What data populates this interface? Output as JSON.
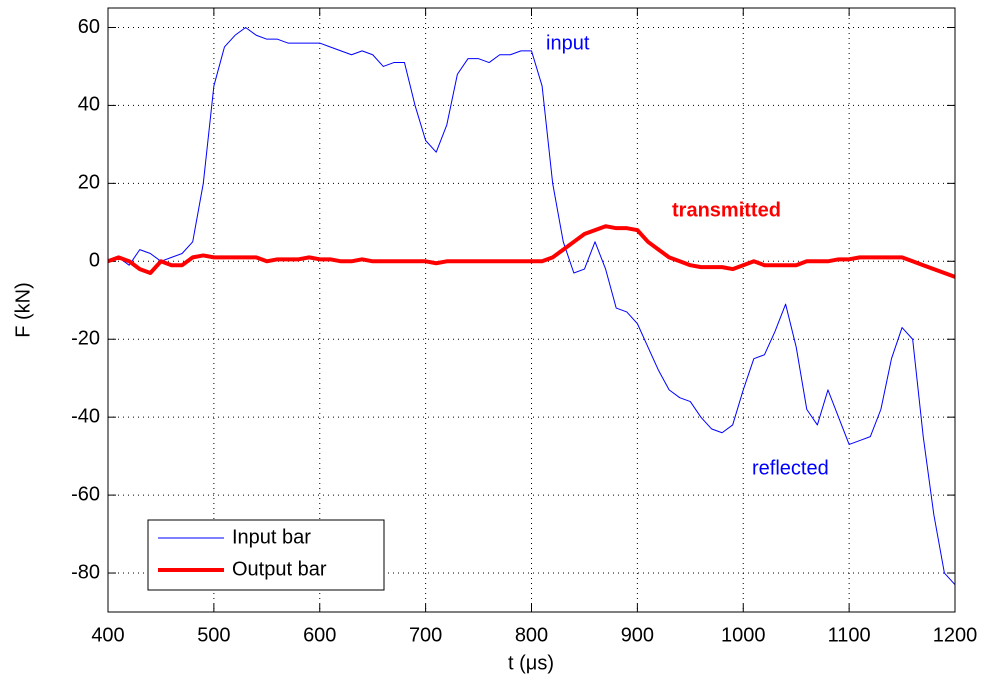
{
  "chart_data": {
    "type": "line",
    "xlabel": "t (μs)",
    "ylabel": "F (kN)",
    "x": [
      400,
      410,
      420,
      430,
      440,
      450,
      460,
      470,
      480,
      490,
      500,
      510,
      520,
      530,
      540,
      550,
      560,
      570,
      580,
      590,
      600,
      610,
      620,
      630,
      640,
      650,
      660,
      670,
      680,
      690,
      700,
      710,
      720,
      730,
      740,
      750,
      760,
      770,
      780,
      790,
      800,
      810,
      820,
      830,
      840,
      850,
      860,
      870,
      880,
      890,
      900,
      910,
      920,
      930,
      940,
      950,
      960,
      970,
      980,
      990,
      1000,
      1010,
      1020,
      1030,
      1040,
      1050,
      1060,
      1070,
      1080,
      1090,
      1100,
      1110,
      1120,
      1130,
      1140,
      1150,
      1160,
      1170,
      1180,
      1190,
      1200
    ],
    "series": [
      {
        "name": "Input bar",
        "color": "#0000ff",
        "width": 1,
        "values": [
          0,
          1,
          -1,
          3,
          2,
          0,
          1,
          2,
          5,
          20,
          45,
          55,
          58,
          60,
          58,
          57,
          57,
          56,
          56,
          56,
          56,
          55,
          54,
          53,
          54,
          53,
          50,
          51,
          51,
          40,
          31,
          28,
          35,
          48,
          52,
          52,
          51,
          53,
          53,
          54,
          54,
          45,
          20,
          5,
          -3,
          -2,
          5,
          -2,
          -12,
          -13,
          -16,
          -22,
          -28,
          -33,
          -35,
          -36,
          -40,
          -43,
          -44,
          -42,
          -33,
          -25,
          -24,
          -18,
          -11,
          -22,
          -38,
          -42,
          -33,
          -40,
          -47,
          -46,
          -45,
          -38,
          -25,
          -17,
          -20,
          -45,
          -65,
          -80,
          -83
        ]
      },
      {
        "name": "Output bar",
        "color": "#ff0000",
        "width": 4,
        "values": [
          0,
          1,
          0,
          -2,
          -3,
          0,
          -1,
          -1,
          1,
          1.5,
          1,
          1,
          1,
          1,
          1,
          0,
          0.5,
          0.5,
          0.5,
          1,
          0.5,
          0.5,
          0,
          0,
          0.5,
          0,
          0,
          0,
          0,
          0,
          0,
          -0.5,
          0,
          0,
          0,
          0,
          0,
          0,
          0,
          0,
          0,
          0,
          1,
          3,
          5,
          7,
          8,
          9,
          8.5,
          8.5,
          8,
          5,
          3,
          1,
          0,
          -1,
          -1.5,
          -1.5,
          -1.5,
          -2,
          -1,
          0,
          -1,
          -1,
          -1,
          -1,
          0,
          0,
          0,
          0.5,
          0.5,
          1,
          1,
          1,
          1,
          1,
          0,
          -1,
          -2,
          -3,
          -4
        ]
      }
    ],
    "annotations": [
      {
        "text": "input",
        "color": "#0000ff"
      },
      {
        "text": "transmitted",
        "color": "#ff0000"
      },
      {
        "text": "reflected",
        "color": "#0000ff"
      }
    ],
    "xlim": [
      400,
      1200
    ],
    "xticks": [
      400,
      500,
      600,
      700,
      800,
      900,
      1000,
      1100,
      1200
    ],
    "ylim": [
      -90,
      65
    ],
    "yticks": [
      -80,
      -60,
      -40,
      -20,
      0,
      20,
      40,
      60
    ],
    "grid": true,
    "legend": "lower left"
  }
}
